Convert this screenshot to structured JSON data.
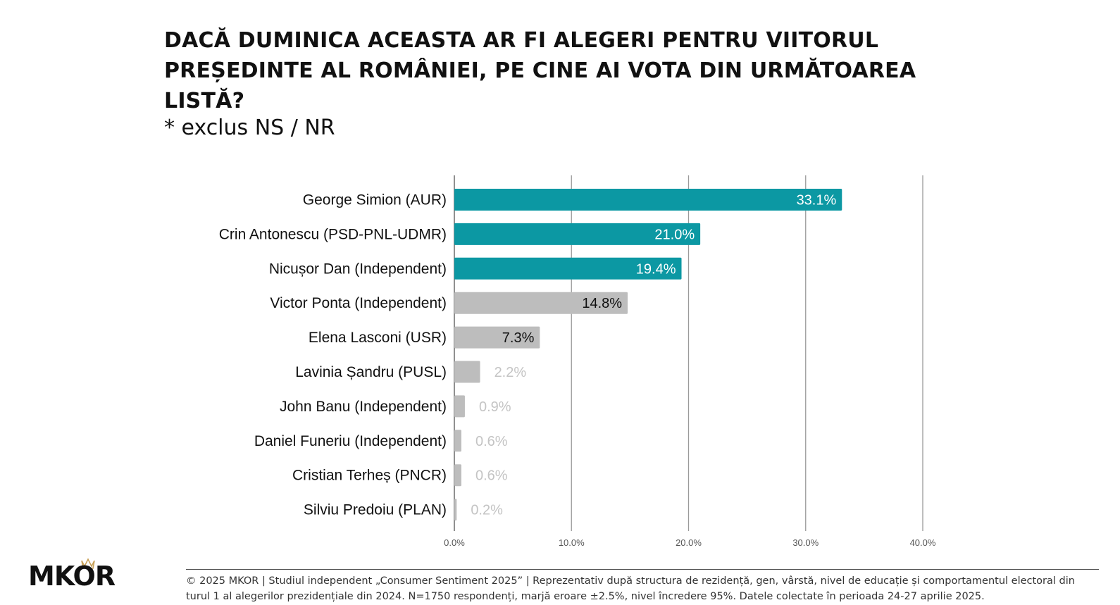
{
  "header": {
    "title": "DACĂ DUMINICA ACEASTA AR FI ALEGERI PENTRU VIITORUL PREȘEDINTE AL ROMÂNIEI, PE CINE AI VOTA DIN URMĂTOAREA LISTĂ?",
    "subtitle": "* exclus NS / NR"
  },
  "chart_data": {
    "type": "bar",
    "orientation": "horizontal",
    "title": "DACĂ DUMINICA ACEASTA AR FI ALEGERI PENTRU VIITORUL PREȘEDINTE AL ROMÂNIEI, PE CINE AI VOTA DIN URMĂTOAREA LISTĂ?",
    "categories": [
      "George Simion (AUR)",
      "Crin Antonescu (PSD-PNL-UDMR)",
      "Nicușor Dan (Independent)",
      "Victor Ponta (Independent)",
      "Elena Lasconi (USR)",
      "Lavinia Șandru (PUSL)",
      "John Banu (Independent)",
      "Daniel Funeriu (Independent)",
      "Cristian Terheș (PNCR)",
      "Silviu Predoiu (PLAN)"
    ],
    "values": [
      33.1,
      21.0,
      19.4,
      14.8,
      7.3,
      2.2,
      0.9,
      0.6,
      0.6,
      0.2
    ],
    "data_labels": [
      "33.1%",
      "21.0%",
      "19.4%",
      "14.8%",
      "7.3%",
      "2.2%",
      "0.9%",
      "0.6%",
      "0.6%",
      "0.2%"
    ],
    "colors": [
      "#0c98a3",
      "#0c98a3",
      "#0c98a3",
      "#bdbdbd",
      "#bdbdbd",
      "#bdbdbd",
      "#bdbdbd",
      "#bdbdbd",
      "#bdbdbd",
      "#bdbdbd"
    ],
    "xlim": [
      0,
      40
    ],
    "xticks": [
      0,
      10,
      20,
      30,
      40
    ],
    "xtick_labels": [
      "0.0%",
      "10.0%",
      "20.0%",
      "30.0%",
      "40.0%"
    ],
    "grid": true,
    "xlabel": "",
    "ylabel": ""
  },
  "footer": {
    "logo": "MKOR",
    "note": "© 2025 MKOR | Studiul independent „Consumer Sentiment 2025” | Reprezentativ după structura de rezidență, gen, vârstă, nivel de educație și comportamentul electoral din turul 1 al alegerilor prezidențiale din 2024. N=1750 respondenți, marjă eroare ±2.5%, nivel încredere 95%. Datele colectate în perioada 24-27 aprilie 2025."
  }
}
